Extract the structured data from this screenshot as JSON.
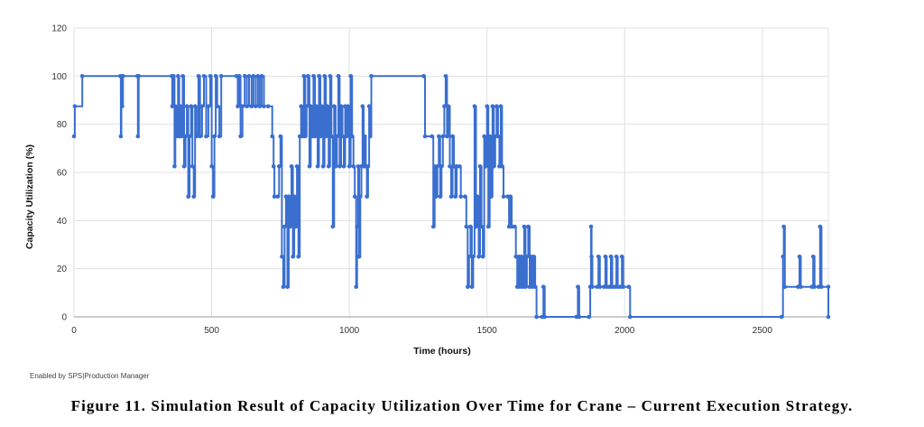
{
  "chart_data": {
    "type": "line",
    "xlabel": "Time (hours)",
    "ylabel": "Capacity Utilization (%)",
    "xlim": [
      0,
      2740
    ],
    "ylim": [
      0,
      120
    ],
    "x_ticks": [
      "0",
      "500",
      "1000",
      "1500",
      "2000",
      "2500"
    ],
    "y_ticks": [
      "0",
      "20",
      "40",
      "60",
      "80",
      "100",
      "120"
    ],
    "grid": true,
    "step": true,
    "series_color": "#3a6fd0",
    "series": [
      {
        "points": [
          [
            0,
            75
          ],
          [
            3,
            87.5
          ],
          [
            30,
            100
          ],
          [
            168,
            100
          ],
          [
            170,
            75
          ],
          [
            172,
            100
          ],
          [
            175,
            87.5
          ],
          [
            178,
            100
          ],
          [
            230,
            100
          ],
          [
            232,
            75
          ],
          [
            235,
            100
          ],
          [
            355,
            100
          ],
          [
            357,
            87.5
          ],
          [
            362,
            100
          ],
          [
            365,
            62.5
          ],
          [
            368,
            87.5
          ],
          [
            372,
            75
          ],
          [
            378,
            100
          ],
          [
            382,
            75
          ],
          [
            386,
            87.5
          ],
          [
            390,
            75
          ],
          [
            395,
            100
          ],
          [
            400,
            62.5
          ],
          [
            405,
            75
          ],
          [
            410,
            87.5
          ],
          [
            415,
            50
          ],
          [
            420,
            75
          ],
          [
            425,
            87.5
          ],
          [
            430,
            62.5
          ],
          [
            435,
            50
          ],
          [
            440,
            87.5
          ],
          [
            445,
            75
          ],
          [
            452,
            100
          ],
          [
            458,
            75
          ],
          [
            465,
            87.5
          ],
          [
            472,
            100
          ],
          [
            480,
            75
          ],
          [
            488,
            87.5
          ],
          [
            495,
            100
          ],
          [
            500,
            62.5
          ],
          [
            505,
            50
          ],
          [
            510,
            75
          ],
          [
            515,
            100
          ],
          [
            520,
            87.5
          ],
          [
            528,
            75
          ],
          [
            535,
            100
          ],
          [
            590,
            100
          ],
          [
            595,
            87.5
          ],
          [
            600,
            100
          ],
          [
            605,
            75
          ],
          [
            612,
            87.5
          ],
          [
            620,
            100
          ],
          [
            628,
            87.5
          ],
          [
            636,
            100
          ],
          [
            645,
            87.5
          ],
          [
            652,
            100
          ],
          [
            660,
            87.5
          ],
          [
            668,
            100
          ],
          [
            675,
            87.5
          ],
          [
            682,
            100
          ],
          [
            690,
            87.5
          ],
          [
            705,
            87.5
          ],
          [
            720,
            75
          ],
          [
            725,
            62.5
          ],
          [
            728,
            50
          ],
          [
            740,
            50
          ],
          [
            745,
            62.5
          ],
          [
            750,
            75
          ],
          [
            755,
            25
          ],
          [
            760,
            12.5
          ],
          [
            765,
            37.5
          ],
          [
            770,
            50
          ],
          [
            775,
            12.5
          ],
          [
            780,
            50
          ],
          [
            785,
            37.5
          ],
          [
            790,
            62.5
          ],
          [
            795,
            25
          ],
          [
            800,
            50
          ],
          [
            805,
            37.5
          ],
          [
            810,
            62.5
          ],
          [
            815,
            25
          ],
          [
            820,
            75
          ],
          [
            825,
            87.5
          ],
          [
            830,
            75
          ],
          [
            835,
            100
          ],
          [
            840,
            75
          ],
          [
            845,
            87.5
          ],
          [
            850,
            100
          ],
          [
            855,
            62.5
          ],
          [
            860,
            87.5
          ],
          [
            865,
            75
          ],
          [
            870,
            100
          ],
          [
            875,
            75
          ],
          [
            880,
            87.5
          ],
          [
            885,
            62.5
          ],
          [
            890,
            100
          ],
          [
            895,
            75
          ],
          [
            900,
            87.5
          ],
          [
            905,
            62.5
          ],
          [
            910,
            100
          ],
          [
            915,
            75
          ],
          [
            920,
            87.5
          ],
          [
            925,
            62.5
          ],
          [
            930,
            100
          ],
          [
            935,
            75
          ],
          [
            940,
            37.5
          ],
          [
            945,
            87.5
          ],
          [
            950,
            62.5
          ],
          [
            955,
            75
          ],
          [
            960,
            100
          ],
          [
            965,
            62.5
          ],
          [
            970,
            87.5
          ],
          [
            975,
            75
          ],
          [
            980,
            62.5
          ],
          [
            985,
            87.5
          ],
          [
            990,
            75
          ],
          [
            995,
            87.5
          ],
          [
            1000,
            62.5
          ],
          [
            1005,
            100
          ],
          [
            1010,
            75
          ],
          [
            1015,
            62.5
          ],
          [
            1020,
            50
          ],
          [
            1025,
            12.5
          ],
          [
            1028,
            37.5
          ],
          [
            1032,
            62.5
          ],
          [
            1036,
            25
          ],
          [
            1040,
            50
          ],
          [
            1044,
            62.5
          ],
          [
            1048,
            87.5
          ],
          [
            1052,
            62.5
          ],
          [
            1056,
            75
          ],
          [
            1060,
            62.5
          ],
          [
            1064,
            50
          ],
          [
            1068,
            62.5
          ],
          [
            1072,
            87.5
          ],
          [
            1076,
            75
          ],
          [
            1080,
            100
          ],
          [
            1270,
            100
          ],
          [
            1275,
            75
          ],
          [
            1300,
            75
          ],
          [
            1305,
            37.5
          ],
          [
            1310,
            62.5
          ],
          [
            1315,
            50
          ],
          [
            1320,
            62.5
          ],
          [
            1325,
            75
          ],
          [
            1330,
            50
          ],
          [
            1335,
            62.5
          ],
          [
            1340,
            75
          ],
          [
            1345,
            87.5
          ],
          [
            1350,
            100
          ],
          [
            1355,
            75
          ],
          [
            1360,
            87.5
          ],
          [
            1365,
            62.5
          ],
          [
            1370,
            50
          ],
          [
            1375,
            75
          ],
          [
            1380,
            62.5
          ],
          [
            1385,
            50
          ],
          [
            1390,
            62.5
          ],
          [
            1400,
            62.5
          ],
          [
            1405,
            50
          ],
          [
            1420,
            50
          ],
          [
            1425,
            37.5
          ],
          [
            1430,
            12.5
          ],
          [
            1435,
            25
          ],
          [
            1440,
            37.5
          ],
          [
            1445,
            12.5
          ],
          [
            1450,
            25
          ],
          [
            1455,
            87.5
          ],
          [
            1460,
            37.5
          ],
          [
            1465,
            50
          ],
          [
            1470,
            25
          ],
          [
            1475,
            62.5
          ],
          [
            1480,
            37.5
          ],
          [
            1485,
            25
          ],
          [
            1490,
            75
          ],
          [
            1495,
            62.5
          ],
          [
            1500,
            87.5
          ],
          [
            1505,
            37.5
          ],
          [
            1510,
            75
          ],
          [
            1515,
            50
          ],
          [
            1520,
            87.5
          ],
          [
            1525,
            62.5
          ],
          [
            1530,
            75
          ],
          [
            1535,
            87.5
          ],
          [
            1540,
            75
          ],
          [
            1545,
            62.5
          ],
          [
            1550,
            87.5
          ],
          [
            1555,
            62.5
          ],
          [
            1560,
            50
          ],
          [
            1575,
            50
          ],
          [
            1580,
            37.5
          ],
          [
            1585,
            50
          ],
          [
            1590,
            37.5
          ],
          [
            1600,
            37.5
          ],
          [
            1605,
            25
          ],
          [
            1610,
            12.5
          ],
          [
            1615,
            25
          ],
          [
            1620,
            12.5
          ],
          [
            1625,
            25
          ],
          [
            1630,
            12.5
          ],
          [
            1635,
            37.5
          ],
          [
            1640,
            12.5
          ],
          [
            1645,
            25
          ],
          [
            1650,
            37.5
          ],
          [
            1655,
            12.5
          ],
          [
            1660,
            25
          ],
          [
            1665,
            12.5
          ],
          [
            1670,
            25
          ],
          [
            1675,
            12.5
          ],
          [
            1680,
            0
          ],
          [
            1700,
            0
          ],
          [
            1705,
            12.5
          ],
          [
            1710,
            0
          ],
          [
            1825,
            0
          ],
          [
            1830,
            12.5
          ],
          [
            1835,
            0
          ],
          [
            1870,
            0
          ],
          [
            1875,
            12.5
          ],
          [
            1878,
            37.5
          ],
          [
            1880,
            25
          ],
          [
            1883,
            12.5
          ],
          [
            1900,
            12.5
          ],
          [
            1905,
            25
          ],
          [
            1910,
            12.5
          ],
          [
            1925,
            12.5
          ],
          [
            1930,
            25
          ],
          [
            1935,
            12.5
          ],
          [
            1945,
            12.5
          ],
          [
            1950,
            25
          ],
          [
            1955,
            12.5
          ],
          [
            1965,
            12.5
          ],
          [
            1970,
            25
          ],
          [
            1975,
            12.5
          ],
          [
            1985,
            12.5
          ],
          [
            1990,
            25
          ],
          [
            1995,
            12.5
          ],
          [
            2015,
            12.5
          ],
          [
            2020,
            0
          ],
          [
            2570,
            0
          ],
          [
            2575,
            25
          ],
          [
            2578,
            37.5
          ],
          [
            2582,
            12.5
          ],
          [
            2630,
            12.5
          ],
          [
            2635,
            25
          ],
          [
            2640,
            12.5
          ],
          [
            2680,
            12.5
          ],
          [
            2685,
            25
          ],
          [
            2690,
            12.5
          ],
          [
            2705,
            12.5
          ],
          [
            2710,
            37.5
          ],
          [
            2715,
            12.5
          ],
          [
            2740,
            12.5
          ],
          [
            2740,
            0
          ]
        ]
      }
    ]
  },
  "credit_text": "Enabled by SPS|Production Manager",
  "caption": "Figure 11. Simulation Result of Capacity Utilization Over Time for Crane – Current Execution Strategy."
}
